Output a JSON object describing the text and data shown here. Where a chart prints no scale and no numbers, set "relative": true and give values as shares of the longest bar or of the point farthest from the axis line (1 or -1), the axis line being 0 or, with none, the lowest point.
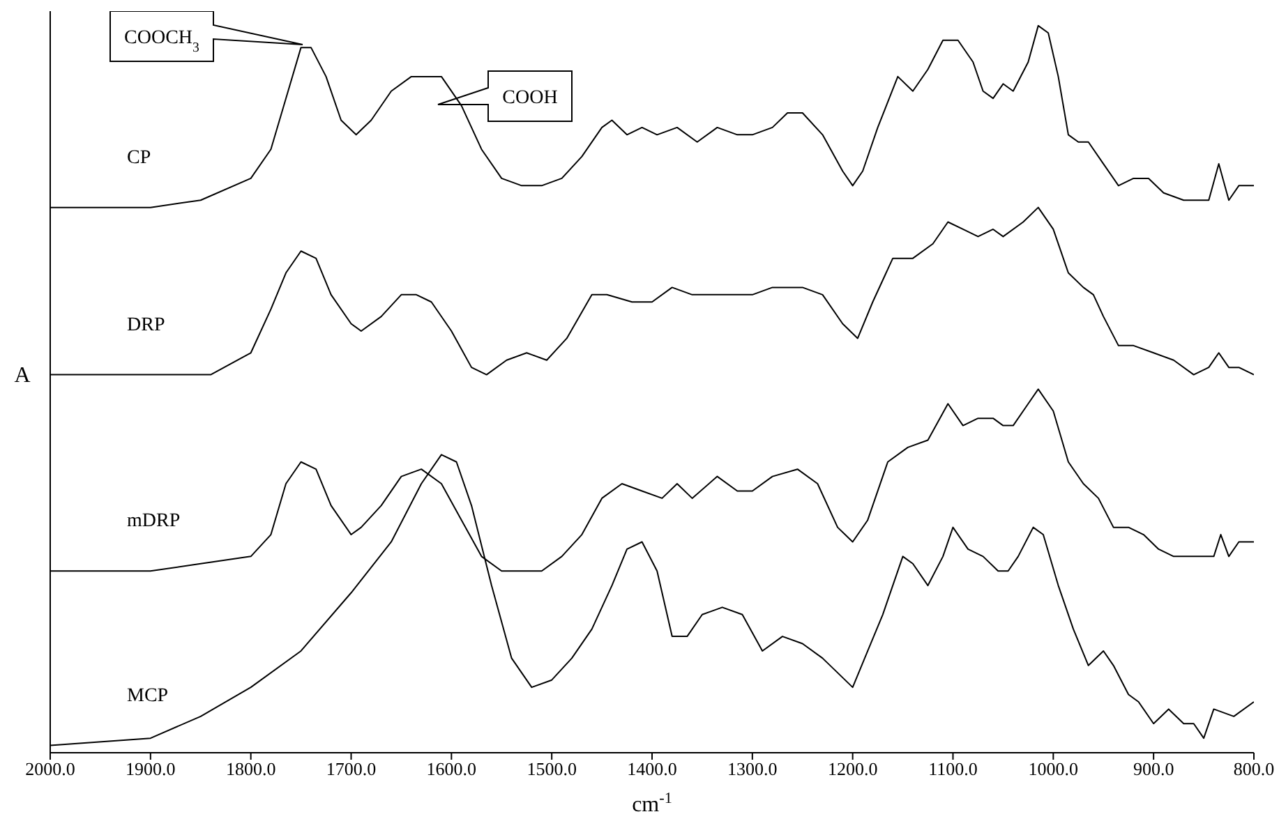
{
  "chart_data": {
    "type": "line",
    "relative": true,
    "xlabel": "cm$^{-1}$",
    "ylabel": "A",
    "tick_labels": "x",
    "marker": "none",
    "xlim": [
      2000,
      800
    ],
    "xticks": [
      {
        "value": 2000,
        "label": "2000.0"
      },
      {
        "value": 1900,
        "label": "1900.0"
      },
      {
        "value": 1800,
        "label": "1800.0"
      },
      {
        "value": 1700,
        "label": "1700.0"
      },
      {
        "value": 1600,
        "label": "1600.0"
      },
      {
        "value": 1500,
        "label": "1500.0"
      },
      {
        "value": 1400,
        "label": "1400.0"
      },
      {
        "value": 1300,
        "label": "1300.0"
      },
      {
        "value": 1200,
        "label": "1200.0"
      },
      {
        "value": 1100,
        "label": "1100.0"
      },
      {
        "value": 1000,
        "label": "1000.0"
      },
      {
        "value": 900,
        "label": "900.0"
      },
      {
        "value": 800,
        "label": "800.0"
      }
    ],
    "annotations": [
      "COOCH$_{3}$",
      "COOH"
    ],
    "series": [
      {
        "name": "CP",
        "color": "#000000",
        "x": [
          2000,
          1900,
          1850,
          1800,
          1780,
          1765,
          1750,
          1740,
          1725,
          1710,
          1695,
          1680,
          1660,
          1640,
          1625,
          1610,
          1590,
          1570,
          1550,
          1530,
          1510,
          1490,
          1470,
          1450,
          1440,
          1425,
          1410,
          1395,
          1375,
          1355,
          1335,
          1315,
          1300,
          1280,
          1265,
          1250,
          1230,
          1210,
          1200,
          1190,
          1175,
          1155,
          1140,
          1125,
          1110,
          1095,
          1080,
          1070,
          1060,
          1050,
          1040,
          1025,
          1015,
          1005,
          995,
          985,
          975,
          965,
          950,
          935,
          920,
          905,
          890,
          870,
          855,
          845,
          835,
          825,
          815,
          800
        ],
        "values": [
          0.75,
          0.75,
          0.76,
          0.79,
          0.83,
          0.9,
          0.97,
          0.97,
          0.93,
          0.87,
          0.85,
          0.87,
          0.91,
          0.93,
          0.93,
          0.93,
          0.89,
          0.83,
          0.79,
          0.78,
          0.78,
          0.79,
          0.82,
          0.86,
          0.87,
          0.85,
          0.86,
          0.85,
          0.86,
          0.84,
          0.86,
          0.85,
          0.85,
          0.86,
          0.88,
          0.88,
          0.85,
          0.8,
          0.78,
          0.8,
          0.86,
          0.93,
          0.91,
          0.94,
          0.98,
          0.98,
          0.95,
          0.91,
          0.9,
          0.92,
          0.91,
          0.95,
          1,
          0.99,
          0.93,
          0.85,
          0.84,
          0.84,
          0.81,
          0.78,
          0.79,
          0.79,
          0.77,
          0.76,
          0.76,
          0.76,
          0.81,
          0.76,
          0.78,
          0.78
        ]
      },
      {
        "name": "DRP",
        "color": "#000000",
        "x": [
          2000,
          1900,
          1840,
          1800,
          1780,
          1765,
          1750,
          1735,
          1720,
          1700,
          1690,
          1670,
          1650,
          1635,
          1620,
          1600,
          1580,
          1565,
          1545,
          1525,
          1505,
          1485,
          1460,
          1445,
          1420,
          1400,
          1380,
          1360,
          1340,
          1320,
          1300,
          1280,
          1250,
          1230,
          1210,
          1195,
          1180,
          1160,
          1140,
          1120,
          1105,
          1090,
          1075,
          1060,
          1050,
          1030,
          1015,
          1000,
          985,
          970,
          960,
          950,
          935,
          920,
          900,
          880,
          860,
          845,
          835,
          825,
          815,
          800
        ],
        "values": [
          0.52,
          0.52,
          0.52,
          0.55,
          0.61,
          0.66,
          0.69,
          0.68,
          0.63,
          0.59,
          0.58,
          0.6,
          0.63,
          0.63,
          0.62,
          0.58,
          0.53,
          0.52,
          0.54,
          0.55,
          0.54,
          0.57,
          0.63,
          0.63,
          0.62,
          0.62,
          0.64,
          0.63,
          0.63,
          0.63,
          0.63,
          0.64,
          0.64,
          0.63,
          0.59,
          0.57,
          0.62,
          0.68,
          0.68,
          0.7,
          0.73,
          0.72,
          0.71,
          0.72,
          0.71,
          0.73,
          0.75,
          0.72,
          0.66,
          0.64,
          0.63,
          0.6,
          0.56,
          0.56,
          0.55,
          0.54,
          0.52,
          0.53,
          0.55,
          0.53,
          0.53,
          0.52
        ]
      },
      {
        "name": "mDRP",
        "color": "#000000",
        "x": [
          2000,
          1900,
          1850,
          1800,
          1780,
          1765,
          1750,
          1735,
          1720,
          1700,
          1690,
          1670,
          1650,
          1630,
          1610,
          1590,
          1570,
          1550,
          1530,
          1510,
          1490,
          1470,
          1450,
          1430,
          1410,
          1390,
          1375,
          1360,
          1335,
          1315,
          1300,
          1280,
          1255,
          1235,
          1215,
          1200,
          1185,
          1165,
          1145,
          1125,
          1105,
          1090,
          1075,
          1060,
          1050,
          1040,
          1025,
          1015,
          1000,
          985,
          970,
          955,
          940,
          925,
          910,
          895,
          880,
          860,
          850,
          840,
          833,
          825,
          815,
          800
        ],
        "values": [
          0.25,
          0.25,
          0.26,
          0.27,
          0.3,
          0.37,
          0.4,
          0.39,
          0.34,
          0.3,
          0.31,
          0.34,
          0.38,
          0.39,
          0.37,
          0.32,
          0.27,
          0.25,
          0.25,
          0.25,
          0.27,
          0.3,
          0.35,
          0.37,
          0.36,
          0.35,
          0.37,
          0.35,
          0.38,
          0.36,
          0.36,
          0.38,
          0.39,
          0.37,
          0.31,
          0.29,
          0.32,
          0.4,
          0.42,
          0.43,
          0.48,
          0.45,
          0.46,
          0.46,
          0.45,
          0.45,
          0.48,
          0.5,
          0.47,
          0.4,
          0.37,
          0.35,
          0.31,
          0.31,
          0.3,
          0.28,
          0.27,
          0.27,
          0.27,
          0.27,
          0.3,
          0.27,
          0.29,
          0.29
        ]
      },
      {
        "name": "MCP",
        "color": "#000000",
        "x": [
          2000,
          1900,
          1850,
          1800,
          1750,
          1700,
          1660,
          1630,
          1610,
          1595,
          1580,
          1560,
          1540,
          1520,
          1500,
          1480,
          1460,
          1440,
          1425,
          1410,
          1395,
          1380,
          1365,
          1350,
          1330,
          1310,
          1290,
          1270,
          1250,
          1230,
          1200,
          1185,
          1170,
          1150,
          1140,
          1125,
          1110,
          1100,
          1085,
          1070,
          1055,
          1045,
          1035,
          1020,
          1010,
          995,
          980,
          965,
          950,
          940,
          925,
          915,
          900,
          885,
          870,
          860,
          850,
          840,
          820,
          800
        ],
        "values": [
          0.01,
          0.02,
          0.05,
          0.09,
          0.14,
          0.22,
          0.29,
          0.37,
          0.41,
          0.4,
          0.34,
          0.23,
          0.13,
          0.09,
          0.1,
          0.13,
          0.17,
          0.23,
          0.28,
          0.29,
          0.25,
          0.16,
          0.16,
          0.19,
          0.2,
          0.19,
          0.14,
          0.16,
          0.15,
          0.13,
          0.09,
          0.14,
          0.19,
          0.27,
          0.26,
          0.23,
          0.27,
          0.31,
          0.28,
          0.27,
          0.25,
          0.25,
          0.27,
          0.31,
          0.3,
          0.23,
          0.17,
          0.12,
          0.14,
          0.12,
          0.08,
          0.07,
          0.04,
          0.06,
          0.04,
          0.04,
          0.02,
          0.06,
          0.05,
          0.07
        ]
      }
    ]
  }
}
